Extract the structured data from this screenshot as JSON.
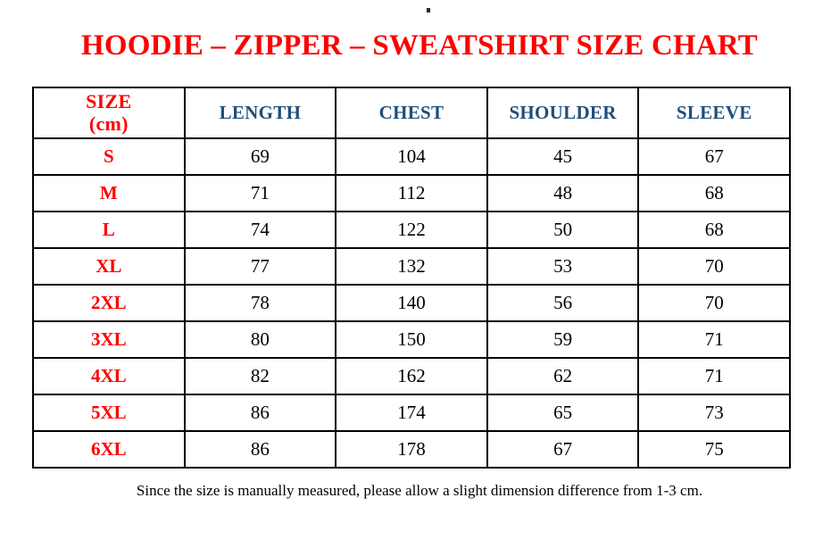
{
  "page": {
    "title": "HOODIE – ZIPPER – SWEATSHIRT SIZE CHART",
    "footnote": "Since the size is manually measured, please allow a slight dimension difference from 1-3 cm."
  },
  "colors": {
    "title_red": "#fe0000",
    "header_navy": "#1f4e79",
    "row_label_red": "#fe0000",
    "value_black": "#000000",
    "border_black": "#000000",
    "background": "#ffffff"
  },
  "table": {
    "header": {
      "size_line1": "SIZE",
      "size_line2": "(cm)",
      "columns": [
        "LENGTH",
        "CHEST",
        "SHOULDER",
        "SLEEVE"
      ]
    },
    "rows": [
      {
        "size": "S",
        "length": "69",
        "chest": "104",
        "shoulder": "45",
        "sleeve": "67"
      },
      {
        "size": "M",
        "length": "71",
        "chest": "112",
        "shoulder": "48",
        "sleeve": "68"
      },
      {
        "size": "L",
        "length": "74",
        "chest": "122",
        "shoulder": "50",
        "sleeve": "68"
      },
      {
        "size": "XL",
        "length": "77",
        "chest": "132",
        "shoulder": "53",
        "sleeve": "70"
      },
      {
        "size": "2XL",
        "length": "78",
        "chest": "140",
        "shoulder": "56",
        "sleeve": "70"
      },
      {
        "size": "3XL",
        "length": "80",
        "chest": "150",
        "shoulder": "59",
        "sleeve": "71"
      },
      {
        "size": "4XL",
        "length": "82",
        "chest": "162",
        "shoulder": "62",
        "sleeve": "71"
      },
      {
        "size": "5XL",
        "length": "86",
        "chest": "174",
        "shoulder": "65",
        "sleeve": "73"
      },
      {
        "size": "6XL",
        "length": "86",
        "chest": "178",
        "shoulder": "67",
        "sleeve": "75"
      }
    ]
  },
  "chart_data": {
    "type": "table",
    "title": "HOODIE – ZIPPER – SWEATSHIRT SIZE CHART",
    "columns": [
      "SIZE (cm)",
      "LENGTH",
      "CHEST",
      "SHOULDER",
      "SLEEVE"
    ],
    "rows": [
      [
        "S",
        69,
        104,
        45,
        67
      ],
      [
        "M",
        71,
        112,
        48,
        68
      ],
      [
        "L",
        74,
        122,
        50,
        68
      ],
      [
        "XL",
        77,
        132,
        53,
        70
      ],
      [
        "2XL",
        78,
        140,
        56,
        70
      ],
      [
        "3XL",
        80,
        150,
        59,
        71
      ],
      [
        "4XL",
        82,
        162,
        62,
        71
      ],
      [
        "5XL",
        86,
        174,
        65,
        73
      ],
      [
        "6XL",
        86,
        178,
        67,
        75
      ]
    ]
  }
}
